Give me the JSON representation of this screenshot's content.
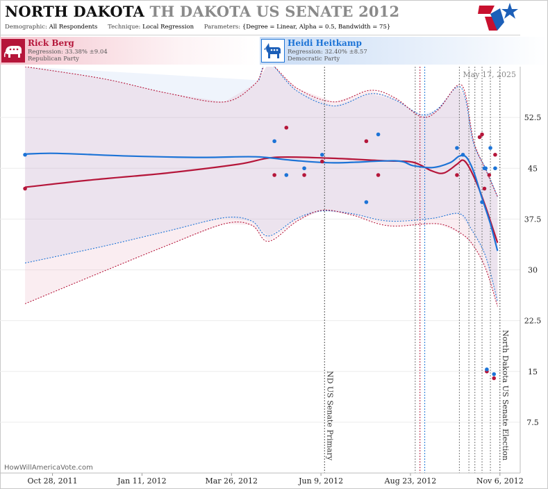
{
  "header": {
    "state": "NORTH DAKOTA",
    "race": "TH DAKOTA US SENATE 2012",
    "demographic_label": "Demographic:",
    "demographic_value": "All Respondents",
    "technique_label": "Technique:",
    "technique_value": "Local Regression",
    "parameters_label": "Parameters:",
    "parameters_value": "{Degree = Linear, Alpha = 0.5, Bandwidth = 75}"
  },
  "candidates": {
    "republican": {
      "name": "Rick Berg",
      "regression": "Regression: 33.38% ±9.04",
      "party": "Republican Party",
      "icon": "elephant-icon",
      "color": "#b5163a"
    },
    "democratic": {
      "name": "Heidi Heitkamp",
      "regression": "Regression: 32.40% ±8.57",
      "party": "Democratic Party",
      "icon": "donkey-icon",
      "color": "#1c73d6"
    }
  },
  "credit": "HowWillAmericaVote.com",
  "chart_data": {
    "type": "line",
    "date_stamp": "May 17, 2025",
    "x_range": [
      "2011-09-14",
      "2012-11-23"
    ],
    "y_range": [
      0,
      60
    ],
    "y_ticks": [
      7.5,
      15,
      22.5,
      30,
      37.5,
      45,
      52.5
    ],
    "y_tick_labels": [
      "7.5",
      "15",
      "22.5",
      "30",
      "37.5",
      "45",
      "52.5"
    ],
    "x_ticks": [
      "2011-10-28",
      "2012-01-11",
      "2012-03-26",
      "2012-06-09",
      "2012-08-23",
      "2012-11-06"
    ],
    "x_tick_labels": [
      "Oct 28, 2011",
      "Jan 11, 2012",
      "Mar 26, 2012",
      "Jun 9, 2012",
      "Aug 23, 2012",
      "Nov 6, 2012"
    ],
    "event_lines": [
      {
        "date": "2012-06-12",
        "label": "ND US Senate Primary",
        "color": "#555555"
      },
      {
        "date": "2012-11-06",
        "label": "North Dakota US Senate Election",
        "color": "#555555"
      }
    ],
    "marker_lines": [
      {
        "date": "2012-08-27",
        "color": "#777777"
      },
      {
        "date": "2012-08-31",
        "color": "#b5163a"
      },
      {
        "date": "2012-09-04",
        "color": "#1c73d6"
      },
      {
        "date": "2012-10-03",
        "color": "#777777"
      },
      {
        "date": "2012-10-11",
        "color": "#777777"
      },
      {
        "date": "2012-10-16",
        "color": "#777777"
      },
      {
        "date": "2012-10-22",
        "color": "#777777"
      },
      {
        "date": "2012-10-29",
        "color": "#777777"
      }
    ],
    "series": [
      {
        "name": "Rick Berg",
        "color": "#b5163a",
        "regression": [
          {
            "x": "2011-10-05",
            "y": 42.2
          },
          {
            "x": "2011-12-01",
            "y": 43.3
          },
          {
            "x": "2012-02-01",
            "y": 44.3
          },
          {
            "x": "2012-04-01",
            "y": 45.6
          },
          {
            "x": "2012-05-01",
            "y": 46.6
          },
          {
            "x": "2012-06-15",
            "y": 46.5
          },
          {
            "x": "2012-08-01",
            "y": 46.1
          },
          {
            "x": "2012-08-25",
            "y": 45.9
          },
          {
            "x": "2012-09-10",
            "y": 44.6
          },
          {
            "x": "2012-09-20",
            "y": 44.3
          },
          {
            "x": "2012-10-01",
            "y": 45.6
          },
          {
            "x": "2012-10-06",
            "y": 46.2
          },
          {
            "x": "2012-10-11",
            "y": 45.2
          },
          {
            "x": "2012-10-18",
            "y": 42.6
          },
          {
            "x": "2012-10-25",
            "y": 39.3
          },
          {
            "x": "2012-11-01",
            "y": 35.6
          },
          {
            "x": "2012-11-04",
            "y": 34.0
          }
        ],
        "upper": [
          {
            "x": "2011-10-05",
            "y": 60.0
          },
          {
            "x": "2011-12-10",
            "y": 58.2
          },
          {
            "x": "2012-02-01",
            "y": 56.1
          },
          {
            "x": "2012-03-20",
            "y": 54.8
          },
          {
            "x": "2012-04-15",
            "y": 57.5
          },
          {
            "x": "2012-04-26",
            "y": 60.5
          },
          {
            "x": "2012-05-20",
            "y": 56.8
          },
          {
            "x": "2012-06-20",
            "y": 54.8
          },
          {
            "x": "2012-07-20",
            "y": 56.5
          },
          {
            "x": "2012-08-10",
            "y": 55.4
          },
          {
            "x": "2012-09-01",
            "y": 52.6
          },
          {
            "x": "2012-09-15",
            "y": 53.6
          },
          {
            "x": "2012-10-01",
            "y": 57.2
          },
          {
            "x": "2012-10-08",
            "y": 56.0
          },
          {
            "x": "2012-10-15",
            "y": 49.0
          },
          {
            "x": "2012-10-25",
            "y": 44.8
          },
          {
            "x": "2012-11-04",
            "y": 40.8
          }
        ],
        "lower": [
          {
            "x": "2011-10-05",
            "y": 25.0
          },
          {
            "x": "2011-12-10",
            "y": 29.8
          },
          {
            "x": "2012-02-01",
            "y": 33.6
          },
          {
            "x": "2012-03-20",
            "y": 36.8
          },
          {
            "x": "2012-04-12",
            "y": 36.6
          },
          {
            "x": "2012-04-26",
            "y": 34.2
          },
          {
            "x": "2012-05-20",
            "y": 37.2
          },
          {
            "x": "2012-06-10",
            "y": 38.8
          },
          {
            "x": "2012-07-05",
            "y": 38.1
          },
          {
            "x": "2012-08-05",
            "y": 36.5
          },
          {
            "x": "2012-09-15",
            "y": 36.8
          },
          {
            "x": "2012-10-05",
            "y": 35.3
          },
          {
            "x": "2012-10-15",
            "y": 33.5
          },
          {
            "x": "2012-10-25",
            "y": 30.2
          },
          {
            "x": "2012-11-04",
            "y": 24.6
          }
        ],
        "points": [
          {
            "x": "2011-10-05",
            "y": 42
          },
          {
            "x": "2012-05-01",
            "y": 44
          },
          {
            "x": "2012-05-11",
            "y": 51
          },
          {
            "x": "2012-05-26",
            "y": 44
          },
          {
            "x": "2012-06-10",
            "y": 46
          },
          {
            "x": "2012-07-17",
            "y": 49
          },
          {
            "x": "2012-07-27",
            "y": 44
          },
          {
            "x": "2012-10-01",
            "y": 44
          },
          {
            "x": "2012-10-20",
            "y": 49.6
          },
          {
            "x": "2012-10-22",
            "y": 50
          },
          {
            "x": "2012-10-24",
            "y": 42
          },
          {
            "x": "2012-10-28",
            "y": 44
          },
          {
            "x": "2012-11-02",
            "y": 47
          },
          {
            "x": "2012-10-26",
            "y": 15
          },
          {
            "x": "2012-11-01",
            "y": 14
          }
        ]
      },
      {
        "name": "Heidi Heitkamp",
        "color": "#1c73d6",
        "regression": [
          {
            "x": "2011-10-05",
            "y": 47.1
          },
          {
            "x": "2011-11-01",
            "y": 47.2
          },
          {
            "x": "2012-01-01",
            "y": 46.8
          },
          {
            "x": "2012-03-01",
            "y": 46.6
          },
          {
            "x": "2012-04-15",
            "y": 46.7
          },
          {
            "x": "2012-05-15",
            "y": 46.2
          },
          {
            "x": "2012-06-20",
            "y": 45.8
          },
          {
            "x": "2012-08-10",
            "y": 46.1
          },
          {
            "x": "2012-08-25",
            "y": 45.4
          },
          {
            "x": "2012-09-10",
            "y": 45.1
          },
          {
            "x": "2012-09-25",
            "y": 45.8
          },
          {
            "x": "2012-10-03",
            "y": 46.8
          },
          {
            "x": "2012-10-09",
            "y": 46.6
          },
          {
            "x": "2012-10-15",
            "y": 44.5
          },
          {
            "x": "2012-10-22",
            "y": 40.6
          },
          {
            "x": "2012-10-29",
            "y": 36.8
          },
          {
            "x": "2012-11-04",
            "y": 32.8
          }
        ],
        "upper": [
          {
            "x": "2012-04-18",
            "y": 58.0
          },
          {
            "x": "2012-04-26",
            "y": 60.6
          },
          {
            "x": "2012-05-20",
            "y": 56.4
          },
          {
            "x": "2012-06-20",
            "y": 54.2
          },
          {
            "x": "2012-07-20",
            "y": 56.0
          },
          {
            "x": "2012-08-10",
            "y": 55.1
          },
          {
            "x": "2012-09-01",
            "y": 52.9
          },
          {
            "x": "2012-09-15",
            "y": 53.8
          },
          {
            "x": "2012-10-01",
            "y": 57.0
          },
          {
            "x": "2012-10-08",
            "y": 55.3
          },
          {
            "x": "2012-10-15",
            "y": 48.6
          },
          {
            "x": "2012-10-25",
            "y": 45.0
          },
          {
            "x": "2012-11-04",
            "y": 40.8
          }
        ],
        "lower": [
          {
            "x": "2011-10-05",
            "y": 31.0
          },
          {
            "x": "2011-12-10",
            "y": 33.5
          },
          {
            "x": "2012-02-01",
            "y": 35.7
          },
          {
            "x": "2012-03-20",
            "y": 37.7
          },
          {
            "x": "2012-04-12",
            "y": 37.2
          },
          {
            "x": "2012-04-26",
            "y": 35.0
          },
          {
            "x": "2012-05-20",
            "y": 37.6
          },
          {
            "x": "2012-06-10",
            "y": 38.7
          },
          {
            "x": "2012-07-05",
            "y": 38.3
          },
          {
            "x": "2012-08-05",
            "y": 37.2
          },
          {
            "x": "2012-09-10",
            "y": 37.6
          },
          {
            "x": "2012-10-03",
            "y": 38.3
          },
          {
            "x": "2012-10-13",
            "y": 36.0
          },
          {
            "x": "2012-10-25",
            "y": 32.0
          },
          {
            "x": "2012-11-04",
            "y": 25.3
          }
        ],
        "points": [
          {
            "x": "2011-10-05",
            "y": 47
          },
          {
            "x": "2012-05-01",
            "y": 49
          },
          {
            "x": "2012-05-11",
            "y": 44
          },
          {
            "x": "2012-05-26",
            "y": 45
          },
          {
            "x": "2012-06-10",
            "y": 47
          },
          {
            "x": "2012-07-17",
            "y": 40
          },
          {
            "x": "2012-07-27",
            "y": 50
          },
          {
            "x": "2012-10-01",
            "y": 48
          },
          {
            "x": "2012-10-06",
            "y": 47
          },
          {
            "x": "2012-10-22",
            "y": 40
          },
          {
            "x": "2012-10-24",
            "y": 45
          },
          {
            "x": "2012-10-25",
            "y": 45
          },
          {
            "x": "2012-10-29",
            "y": 48
          },
          {
            "x": "2012-11-02",
            "y": 45
          },
          {
            "x": "2012-10-26",
            "y": 15.3
          },
          {
            "x": "2012-11-01",
            "y": 14.6
          }
        ]
      }
    ]
  }
}
